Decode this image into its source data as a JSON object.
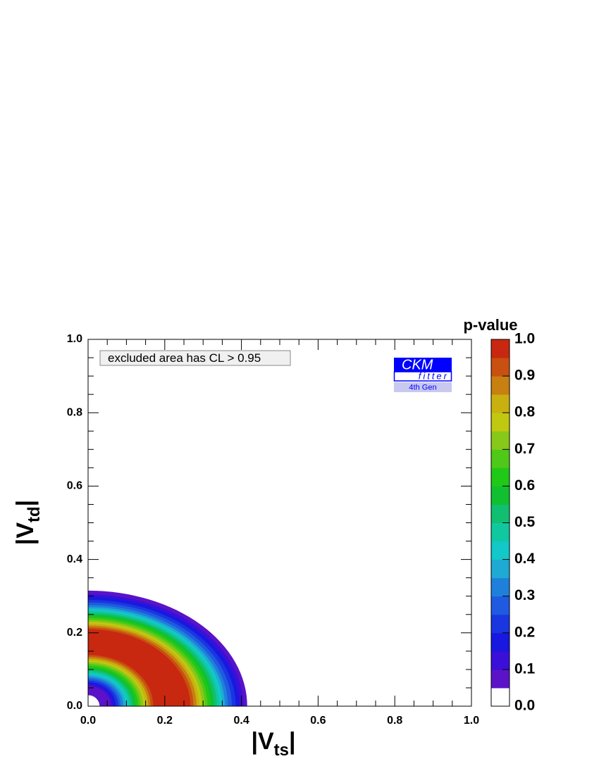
{
  "chart_data": {
    "type": "contour",
    "colorbar_title": "p-value",
    "annotation": "excluded area has CL > 0.95",
    "logo": {
      "top": "CKM",
      "middle": "fitter",
      "bottom": "4th Gen"
    },
    "xlabel": {
      "text": "|V",
      "subscript": "ts",
      "suffix": "|"
    },
    "ylabel": {
      "text": "|V",
      "subscript": "td",
      "suffix": "|"
    },
    "xlim": [
      0,
      1
    ],
    "ylim": [
      0,
      1
    ],
    "zlim": [
      0,
      1
    ],
    "xticks": [
      {
        "value": 0,
        "label": "0.0"
      },
      0.2,
      0.4,
      0.6,
      0.8,
      {
        "value": 1,
        "label": "1.0"
      }
    ],
    "yticks": [
      {
        "value": 0,
        "label": "0.0"
      },
      0.2,
      0.4,
      0.6,
      0.8,
      {
        "value": 1,
        "label": "1.0"
      }
    ],
    "zticks": [
      {
        "value": 0,
        "label": "0.0"
      },
      0.1,
      0.2,
      0.3,
      0.4,
      0.5,
      0.6,
      0.7,
      0.8,
      0.9,
      {
        "value": 1,
        "label": "1.0"
      }
    ],
    "colorscale": [
      "#ffffff",
      "#5a13c8",
      "#3a10d8",
      "#1818e0",
      "#1a36e0",
      "#1f5ae0",
      "#1f80dc",
      "#1eaad2",
      "#12c8c8",
      "#10c8a0",
      "#10c070",
      "#10c030",
      "#20c818",
      "#50c818",
      "#88c818",
      "#c0c810",
      "#c8b010",
      "#c88010",
      "#c85010",
      "#c82810"
    ],
    "contours": [
      {
        "level": 0.05,
        "rx": 0.415,
        "ry": 0.315
      },
      {
        "level": 0.1,
        "rx": 0.405,
        "ry": 0.305
      },
      {
        "level": 0.15,
        "rx": 0.395,
        "ry": 0.298
      },
      {
        "level": 0.2,
        "rx": 0.385,
        "ry": 0.29
      },
      {
        "level": 0.25,
        "rx": 0.375,
        "ry": 0.283
      },
      {
        "level": 0.3,
        "rx": 0.365,
        "ry": 0.276
      },
      {
        "level": 0.35,
        "rx": 0.357,
        "ry": 0.27
      },
      {
        "level": 0.4,
        "rx": 0.35,
        "ry": 0.265
      },
      {
        "level": 0.45,
        "rx": 0.343,
        "ry": 0.26
      },
      {
        "level": 0.5,
        "rx": 0.336,
        "ry": 0.255
      },
      {
        "level": 0.55,
        "rx": 0.328,
        "ry": 0.25
      },
      {
        "level": 0.6,
        "rx": 0.32,
        "ry": 0.245
      },
      {
        "level": 0.65,
        "rx": 0.312,
        "ry": 0.24
      },
      {
        "level": 0.7,
        "rx": 0.305,
        "ry": 0.235
      },
      {
        "level": 0.75,
        "rx": 0.297,
        "ry": 0.23
      },
      {
        "level": 0.8,
        "rx": 0.29,
        "ry": 0.225
      },
      {
        "level": 0.85,
        "rx": 0.283,
        "ry": 0.22
      },
      {
        "level": 0.9,
        "rx": 0.275,
        "ry": 0.215
      },
      {
        "level": 0.95,
        "rx": 0.267,
        "ry": 0.21
      },
      {
        "level": 0.9,
        "rx": 0.17,
        "ry": 0.14
      },
      {
        "level": 0.85,
        "rx": 0.163,
        "ry": 0.135
      },
      {
        "level": 0.8,
        "rx": 0.157,
        "ry": 0.13
      },
      {
        "level": 0.75,
        "rx": 0.15,
        "ry": 0.125
      },
      {
        "level": 0.7,
        "rx": 0.144,
        "ry": 0.12
      },
      {
        "level": 0.65,
        "rx": 0.137,
        "ry": 0.115
      },
      {
        "level": 0.6,
        "rx": 0.131,
        "ry": 0.11
      },
      {
        "level": 0.55,
        "rx": 0.124,
        "ry": 0.105
      },
      {
        "level": 0.5,
        "rx": 0.118,
        "ry": 0.1
      },
      {
        "level": 0.45,
        "rx": 0.111,
        "ry": 0.095
      },
      {
        "level": 0.4,
        "rx": 0.105,
        "ry": 0.09
      },
      {
        "level": 0.35,
        "rx": 0.098,
        "ry": 0.085
      },
      {
        "level": 0.3,
        "rx": 0.092,
        "ry": 0.08
      },
      {
        "level": 0.25,
        "rx": 0.085,
        "ry": 0.075
      },
      {
        "level": 0.2,
        "rx": 0.079,
        "ry": 0.07
      },
      {
        "level": 0.15,
        "rx": 0.072,
        "ry": 0.065
      },
      {
        "level": 0.1,
        "rx": 0.066,
        "ry": 0.06
      },
      {
        "level": 0.05,
        "rx": 0.06,
        "ry": 0.055
      },
      {
        "level": 0,
        "rx": 0.03,
        "ry": 0.03
      }
    ]
  }
}
